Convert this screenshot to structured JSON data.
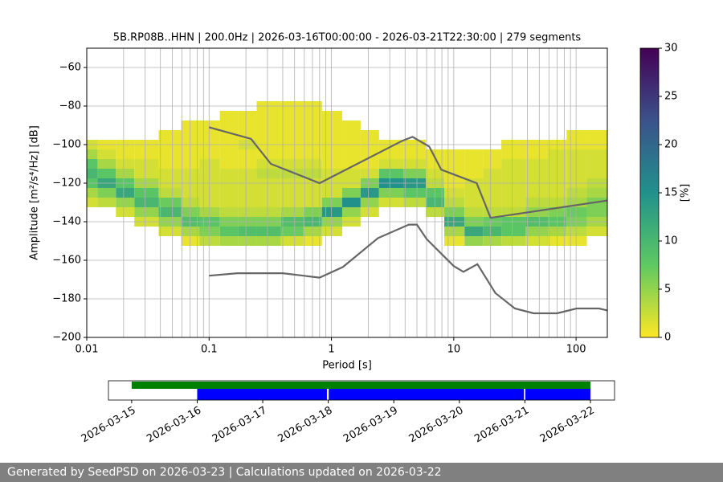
{
  "chart_data": [
    {
      "type": "heatmap",
      "title": "5B.RP08B..HHN | 200.0Hz | 2026-03-16T00:00:00 - 2026-03-21T22:30:00 | 279 segments",
      "xlabel": "Period [s]",
      "ylabel": "Amplitude [m²/s⁴/Hz] [dB]",
      "xscale": "log",
      "xlim": [
        0.01,
        180
      ],
      "xticks": [
        0.01,
        0.1,
        1,
        10,
        100
      ],
      "x_minor_ticks": [
        0.02,
        0.03,
        0.04,
        0.05,
        0.06,
        0.07,
        0.08,
        0.09,
        0.2,
        0.3,
        0.4,
        0.5,
        0.6,
        0.7,
        0.8,
        0.9,
        2,
        3,
        4,
        5,
        6,
        7,
        8,
        9,
        20,
        30,
        40,
        50,
        60,
        70,
        80,
        90
      ],
      "ylim": [
        -200,
        -50
      ],
      "yticks": [
        {
          "value": -200,
          "label": "−200"
        },
        {
          "value": -180,
          "label": "−180"
        },
        {
          "value": -160,
          "label": "−160"
        },
        {
          "value": -140,
          "label": "−140"
        },
        {
          "value": -120,
          "label": "−120"
        },
        {
          "value": -100,
          "label": "−100"
        },
        {
          "value": -80,
          "label": "−80"
        },
        {
          "value": -60,
          "label": "−60"
        }
      ],
      "grid": true,
      "colorbar": {
        "label": "[%]",
        "lim": [
          0,
          30
        ],
        "ticks": [
          0,
          5,
          10,
          15,
          20,
          25,
          30
        ],
        "colormap": "viridis_r"
      },
      "periods": [
        0.01,
        0.015,
        0.02,
        0.03,
        0.05,
        0.07,
        0.1,
        0.15,
        0.2,
        0.3,
        0.5,
        0.7,
        1,
        1.5,
        2,
        3,
        5,
        7,
        10,
        15,
        20,
        30,
        50,
        70,
        100,
        150
      ],
      "amplitudes": [
        -150,
        -145,
        -140,
        -135,
        -130,
        -125,
        -120,
        -115,
        -110,
        -105,
        -100,
        -95,
        -90,
        -85,
        -80
      ],
      "amplitude_step": 5,
      "percent": [
        [
          0,
          0,
          0,
          0,
          2,
          4,
          8,
          10,
          8,
          4,
          2,
          0,
          0,
          0,
          0
        ],
        [
          0,
          0,
          0,
          0,
          3,
          6,
          12,
          8,
          4,
          2,
          1,
          0,
          0,
          0,
          0
        ],
        [
          0,
          0,
          0,
          2,
          5,
          12,
          8,
          4,
          2,
          1,
          1,
          0,
          0,
          0,
          0
        ],
        [
          0,
          0,
          2,
          5,
          10,
          8,
          4,
          2,
          2,
          1,
          1,
          0,
          0,
          0,
          0
        ],
        [
          0,
          2,
          5,
          10,
          7,
          3,
          2,
          2,
          1,
          1,
          1,
          1,
          0,
          0,
          0
        ],
        [
          1,
          4,
          9,
          6,
          3,
          2,
          2,
          2,
          1,
          1,
          1,
          1,
          1,
          0,
          0
        ],
        [
          3,
          6,
          8,
          4,
          2,
          2,
          2,
          2,
          2,
          1,
          1,
          1,
          1,
          0,
          0
        ],
        [
          4,
          8,
          6,
          3,
          2,
          2,
          2,
          2,
          1,
          1,
          1,
          1,
          1,
          1,
          0
        ],
        [
          4,
          9,
          6,
          3,
          2,
          2,
          2,
          2,
          1,
          1,
          2,
          1,
          1,
          1,
          0
        ],
        [
          4,
          9,
          6,
          3,
          2,
          2,
          2,
          3,
          2,
          1,
          1,
          1,
          1,
          1,
          1
        ],
        [
          2,
          7,
          9,
          4,
          2,
          2,
          2,
          3,
          2,
          1,
          1,
          1,
          1,
          1,
          1
        ],
        [
          1,
          4,
          10,
          6,
          2,
          2,
          2,
          3,
          2,
          1,
          1,
          1,
          1,
          1,
          1
        ],
        [
          0,
          2,
          5,
          14,
          6,
          2,
          2,
          2,
          1,
          1,
          1,
          1,
          1,
          1,
          0
        ],
        [
          0,
          0,
          2,
          5,
          15,
          6,
          2,
          2,
          1,
          1,
          1,
          1,
          1,
          0,
          0
        ],
        [
          0,
          0,
          0,
          2,
          5,
          14,
          6,
          2,
          1,
          1,
          1,
          1,
          0,
          0,
          0
        ],
        [
          0,
          0,
          0,
          0,
          2,
          6,
          15,
          8,
          2,
          1,
          1,
          0,
          0,
          0,
          0
        ],
        [
          0,
          0,
          0,
          0,
          3,
          8,
          14,
          6,
          2,
          1,
          1,
          0,
          0,
          0,
          0
        ],
        [
          0,
          0,
          0,
          3,
          10,
          8,
          3,
          2,
          1,
          1,
          0,
          0,
          0,
          0,
          0
        ],
        [
          1,
          4,
          12,
          6,
          3,
          2,
          1,
          1,
          1,
          1,
          0,
          0,
          0,
          0,
          0
        ],
        [
          5,
          12,
          6,
          3,
          2,
          2,
          2,
          1,
          1,
          1,
          0,
          0,
          0,
          0,
          0
        ],
        [
          4,
          10,
          7,
          3,
          2,
          2,
          2,
          2,
          1,
          1,
          0,
          0,
          0,
          0,
          0
        ],
        [
          3,
          8,
          8,
          3,
          2,
          2,
          2,
          2,
          2,
          1,
          1,
          0,
          0,
          0,
          0
        ],
        [
          2,
          5,
          9,
          5,
          3,
          2,
          2,
          2,
          2,
          1,
          1,
          0,
          0,
          0,
          0
        ],
        [
          1,
          4,
          8,
          6,
          3,
          2,
          2,
          2,
          2,
          2,
          1,
          0,
          0,
          0,
          0
        ],
        [
          1,
          3,
          6,
          7,
          4,
          3,
          2,
          2,
          2,
          2,
          1,
          1,
          0,
          0,
          0
        ],
        [
          0,
          2,
          4,
          6,
          6,
          4,
          3,
          2,
          2,
          2,
          1,
          1,
          0,
          0,
          0
        ]
      ],
      "series": [
        {
          "color": "#666666",
          "x": [
            0.1,
            0.22,
            0.32,
            0.8,
            3.8,
            4.6,
            6.3,
            7.9,
            15.4,
            20,
            180
          ],
          "values": [
            -91,
            -97,
            -110,
            -120,
            -98,
            -96,
            -101,
            -113,
            -120,
            -138,
            -129
          ]
        },
        {
          "color": "#666666",
          "x": [
            0.1,
            0.17,
            0.4,
            0.8,
            1.24,
            2.4,
            4.3,
            5,
            6,
            10,
            12,
            15.6,
            21.9,
            31.6,
            45,
            70,
            101,
            154,
            180
          ],
          "values": [
            -168,
            -166.7,
            -166.7,
            -169,
            -163.5,
            -148.5,
            -141.5,
            -141.5,
            -149,
            -163,
            -166,
            -162,
            -177,
            -185,
            -187.5,
            -187.5,
            -185,
            -185,
            -186
          ]
        }
      ]
    },
    {
      "type": "timeline",
      "xlim": [
        "2026-03-14T15:30",
        "2026-03-22T08:50"
      ],
      "xticks": [
        "2026-03-15",
        "2026-03-16",
        "2026-03-17",
        "2026-03-18",
        "2026-03-19",
        "2026-03-20",
        "2026-03-21",
        "2026-03-22"
      ],
      "rows": [
        {
          "color": "#008000",
          "spans": [
            [
              "2026-03-15T00:00",
              "2026-03-22T00:00"
            ]
          ]
        },
        {
          "color": "#0000ff",
          "spans": [
            [
              "2026-03-16T00:00",
              "2026-03-17T23:30"
            ],
            [
              "2026-03-18T00:10",
              "2026-03-20T23:40"
            ],
            [
              "2026-03-21T00:10",
              "2026-03-22T00:00"
            ]
          ]
        }
      ]
    }
  ],
  "footer": "Generated by SeedPSD on 2026-03-23 | Calculations updated on 2026-03-22"
}
